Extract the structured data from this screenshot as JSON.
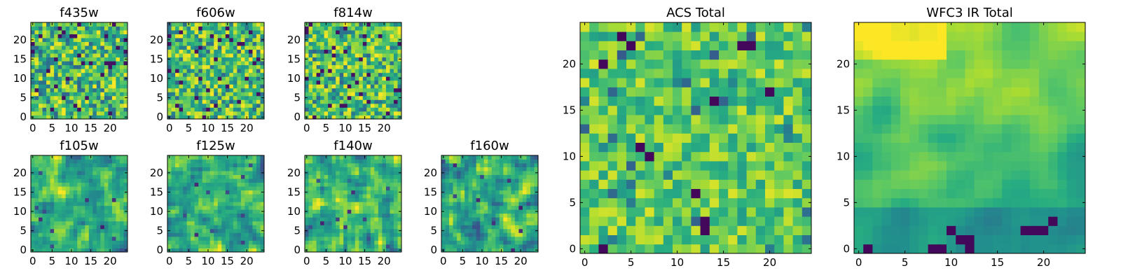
{
  "chart_data": [
    {
      "type": "heatmap",
      "title": "f435w",
      "grid_size": 25,
      "xlim": [
        -0.5,
        24.5
      ],
      "ylim": [
        -0.5,
        24.5
      ],
      "xticks": [
        0,
        5,
        10,
        15,
        20
      ],
      "yticks": [
        0,
        5,
        10,
        15,
        20
      ],
      "texture": "speckled",
      "seed": 11,
      "dark_spots": []
    },
    {
      "type": "heatmap",
      "title": "f606w",
      "grid_size": 25,
      "xlim": [
        -0.5,
        24.5
      ],
      "ylim": [
        -0.5,
        24.5
      ],
      "xticks": [
        0,
        5,
        10,
        15,
        20
      ],
      "yticks": [
        0,
        5,
        10,
        15,
        20
      ],
      "texture": "speckled",
      "seed": 23,
      "dark_spots": []
    },
    {
      "type": "heatmap",
      "title": "f814w",
      "grid_size": 25,
      "xlim": [
        -0.5,
        24.5
      ],
      "ylim": [
        -0.5,
        24.5
      ],
      "xticks": [
        0,
        5,
        10,
        15,
        20
      ],
      "yticks": [
        0,
        5,
        10,
        15,
        20
      ],
      "texture": "speckled",
      "seed": 37,
      "dark_spots": []
    },
    {
      "type": "heatmap",
      "title": "f105w",
      "grid_size": 25,
      "xlim": [
        -0.5,
        24.5
      ],
      "ylim": [
        -0.5,
        24.5
      ],
      "xticks": [
        0,
        5,
        10,
        15,
        20
      ],
      "yticks": [
        0,
        5,
        10,
        15,
        20
      ],
      "texture": "smooth",
      "seed": 41,
      "dark_spots": []
    },
    {
      "type": "heatmap",
      "title": "f125w",
      "grid_size": 25,
      "xlim": [
        -0.5,
        24.5
      ],
      "ylim": [
        -0.5,
        24.5
      ],
      "xticks": [
        0,
        5,
        10,
        15,
        20
      ],
      "yticks": [
        0,
        5,
        10,
        15,
        20
      ],
      "texture": "smooth",
      "seed": 53,
      "dark_spots": []
    },
    {
      "type": "heatmap",
      "title": "f140w",
      "grid_size": 25,
      "xlim": [
        -0.5,
        24.5
      ],
      "ylim": [
        -0.5,
        24.5
      ],
      "xticks": [
        0,
        5,
        10,
        15,
        20
      ],
      "yticks": [
        0,
        5,
        10,
        15,
        20
      ],
      "texture": "smooth",
      "seed": 67,
      "dark_spots": []
    },
    {
      "type": "heatmap",
      "title": "f160w",
      "grid_size": 25,
      "xlim": [
        -0.5,
        24.5
      ],
      "ylim": [
        -0.5,
        24.5
      ],
      "xticks": [
        0,
        5,
        10,
        15,
        20
      ],
      "yticks": [
        0,
        5,
        10,
        15,
        20
      ],
      "texture": "smooth",
      "seed": 79,
      "dark_spots": []
    },
    {
      "type": "heatmap",
      "title": "ACS Total",
      "grid_size": 25,
      "xlim": [
        -0.5,
        24.5
      ],
      "ylim": [
        -0.5,
        24.5
      ],
      "xticks": [
        0,
        5,
        10,
        15,
        20
      ],
      "yticks": [
        0,
        5,
        10,
        15,
        20
      ],
      "texture": "blocky",
      "seed": 97,
      "dark_spots": [
        [
          4,
          23
        ],
        [
          5,
          22
        ],
        [
          2,
          20
        ],
        [
          7,
          10
        ],
        [
          13,
          3
        ],
        [
          13,
          2
        ],
        [
          2,
          0
        ],
        [
          18,
          22
        ],
        [
          17,
          22
        ],
        [
          12,
          6
        ],
        [
          14,
          16
        ],
        [
          6,
          11
        ],
        [
          20,
          17
        ]
      ]
    },
    {
      "type": "heatmap",
      "title": "WFC3 IR Total",
      "grid_size": 25,
      "xlim": [
        -0.5,
        24.5
      ],
      "ylim": [
        -0.5,
        24.5
      ],
      "xticks": [
        0,
        5,
        10,
        15,
        20
      ],
      "yticks": [
        0,
        5,
        10,
        15,
        20
      ],
      "texture": "smooth-bright-top",
      "seed": 113,
      "dark_spots": [
        [
          1,
          0
        ],
        [
          8,
          0
        ],
        [
          9,
          0
        ],
        [
          11,
          1
        ],
        [
          12,
          1
        ],
        [
          10,
          2
        ],
        [
          12,
          0
        ],
        [
          20,
          2
        ],
        [
          18,
          2
        ],
        [
          19,
          2
        ],
        [
          21,
          3
        ]
      ]
    }
  ],
  "colors": {
    "viridis_stops": [
      "#440154",
      "#3b528b",
      "#21918c",
      "#5ec962",
      "#fde725"
    ],
    "axis": "#000000",
    "background": "#ffffff"
  }
}
